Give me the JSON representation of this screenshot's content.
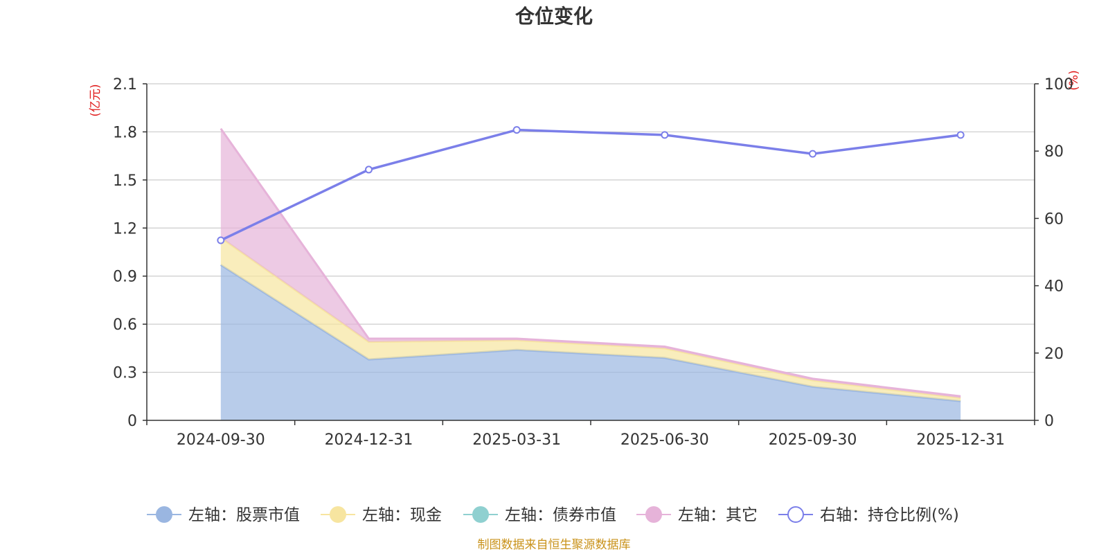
{
  "chart_data": {
    "type": "area",
    "title": "仓位变化",
    "categories": [
      "2024-09-30",
      "2024-12-31",
      "2025-03-31",
      "2025-06-30",
      "2025-09-30",
      "2025-12-31"
    ],
    "left_axis": {
      "unit": "(亿元)",
      "ylim": [
        0,
        2.1
      ],
      "ticks": [
        "0",
        "0.3",
        "0.6",
        "0.9",
        "1.2",
        "1.5",
        "1.8",
        "2.1"
      ]
    },
    "right_axis": {
      "unit": "(%)",
      "ylim": [
        0,
        100
      ],
      "ticks": [
        "0",
        "20",
        "40",
        "60",
        "80",
        "100"
      ]
    },
    "stacked_series": [
      {
        "name": "左轴：股票市值",
        "color": "#9ab6e1",
        "values": [
          0.97,
          0.38,
          0.44,
          0.39,
          0.21,
          0.12
        ]
      },
      {
        "name": "左轴：现金",
        "color": "#f7e5a0",
        "values": [
          0.17,
          0.11,
          0.06,
          0.06,
          0.04,
          0.02
        ]
      },
      {
        "name": "左轴：债券市值",
        "color": "#8fd0d0",
        "values": [
          0,
          0,
          0,
          0,
          0,
          0
        ]
      },
      {
        "name": "左轴：其它",
        "color": "#e6b3d9",
        "values": [
          0.68,
          0.02,
          0.01,
          0.01,
          0.01,
          0.01
        ]
      }
    ],
    "line_series": {
      "name": "右轴：持仓比例(%)",
      "color": "#7b7fe9",
      "values": [
        53.5,
        74.5,
        86.3,
        84.8,
        79.2,
        84.8
      ]
    },
    "grid": true,
    "legend_position": "bottom"
  },
  "source_note": "制图数据来自恒生聚源数据库"
}
